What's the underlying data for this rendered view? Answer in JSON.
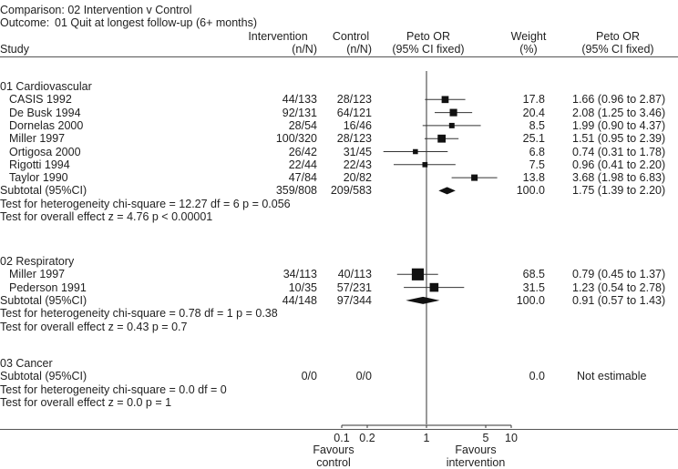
{
  "chart_data": {
    "type": "forest",
    "comparison": "Comparison: 02 Intervention v Control",
    "outcome_label": "Outcome:",
    "outcome": "01 Quit at longest follow-up (6+ months)",
    "headers": {
      "study": "Study",
      "intervention": "Intervention",
      "intervention_sub": "(n/N)",
      "control": "Control",
      "control_sub": "(n/N)",
      "plot": "Peto OR",
      "plot_sub": "(95% CI fixed)",
      "weight": "Weight",
      "weight_sub": "(%)",
      "or": "Peto OR",
      "or_sub": "(95% CI fixed)"
    },
    "x_scale": "log",
    "xlim": [
      0.1,
      10
    ],
    "x_ticks": [
      {
        "value": 0.1,
        "label": "0.1"
      },
      {
        "value": 0.2,
        "label": "0.2"
      },
      {
        "value": 1,
        "label": "1"
      },
      {
        "value": 5,
        "label": "5"
      },
      {
        "value": 10,
        "label": "10"
      }
    ],
    "favours_left": [
      "Favours",
      "control"
    ],
    "favours_right": [
      "Favours",
      "intervention"
    ],
    "groups": [
      {
        "title": "01 Cardiovascular",
        "studies": [
          {
            "name": "CASIS 1992",
            "intervention": "44/133",
            "control": "28/123",
            "weight": 17.8,
            "weight_text": "17.8",
            "or": 1.66,
            "lo": 0.96,
            "hi": 2.87,
            "or_text": "1.66 (0.96 to 2.87)"
          },
          {
            "name": "De Busk 1994",
            "intervention": "92/131",
            "control": "64/121",
            "weight": 20.4,
            "weight_text": "20.4",
            "or": 2.08,
            "lo": 1.25,
            "hi": 3.46,
            "or_text": "2.08 (1.25 to 3.46)"
          },
          {
            "name": "Dornelas 2000",
            "intervention": "28/54",
            "control": "16/46",
            "weight": 8.5,
            "weight_text": "8.5",
            "or": 1.99,
            "lo": 0.9,
            "hi": 4.37,
            "or_text": "1.99 (0.90 to 4.37)"
          },
          {
            "name": "Miller 1997",
            "intervention": "100/320",
            "control": "28/123",
            "weight": 25.1,
            "weight_text": "25.1",
            "or": 1.51,
            "lo": 0.95,
            "hi": 2.39,
            "or_text": "1.51 (0.95 to 2.39)"
          },
          {
            "name": "Ortigosa 2000",
            "intervention": "26/42",
            "control": "31/45",
            "weight": 6.8,
            "weight_text": "6.8",
            "or": 0.74,
            "lo": 0.31,
            "hi": 1.78,
            "or_text": "0.74 (0.31 to 1.78)"
          },
          {
            "name": "Rigotti 1994",
            "intervention": "22/44",
            "control": "22/43",
            "weight": 7.5,
            "weight_text": "7.5",
            "or": 0.96,
            "lo": 0.41,
            "hi": 2.2,
            "or_text": "0.96 (0.41 to 2.20)"
          },
          {
            "name": "Taylor 1990",
            "intervention": "47/84",
            "control": "20/82",
            "weight": 13.8,
            "weight_text": "13.8",
            "or": 3.68,
            "lo": 1.98,
            "hi": 6.83,
            "or_text": "3.68 (1.98 to 6.83)"
          }
        ],
        "subtotal": {
          "name": "Subtotal (95%CI)",
          "intervention": "359/808",
          "control": "209/583",
          "weight_text": "100.0",
          "or": 1.75,
          "lo": 1.39,
          "hi": 2.2,
          "or_text": "1.75 (1.39 to 2.20)"
        },
        "heterogeneity": "Test for heterogeneity chi-square = 12.27 df = 6 p = 0.056",
        "overall": "Test for overall effect z = 4.76 p < 0.00001"
      },
      {
        "title": "02 Respiratory",
        "studies": [
          {
            "name": "Miller 1997",
            "intervention": "34/113",
            "control": "40/113",
            "weight": 68.5,
            "weight_text": "68.5",
            "or": 0.79,
            "lo": 0.45,
            "hi": 1.37,
            "or_text": "0.79 (0.45 to 1.37)"
          },
          {
            "name": "Pederson 1991",
            "intervention": "10/35",
            "control": "57/231",
            "weight": 31.5,
            "weight_text": "31.5",
            "or": 1.23,
            "lo": 0.54,
            "hi": 2.78,
            "or_text": "1.23 (0.54 to 2.78)"
          }
        ],
        "subtotal": {
          "name": "Subtotal (95%CI)",
          "intervention": "44/148",
          "control": "97/344",
          "weight_text": "100.0",
          "or": 0.91,
          "lo": 0.57,
          "hi": 1.43,
          "or_text": "0.91 (0.57 to 1.43)"
        },
        "heterogeneity": "Test for heterogeneity chi-square = 0.78 df = 1 p = 0.38",
        "overall": "Test for overall effect z = 0.43 p = 0.7"
      },
      {
        "title": "03 Cancer",
        "studies": [],
        "subtotal": {
          "name": "Subtotal (95%CI)",
          "intervention": "0/0",
          "control": "0/0",
          "weight_text": "0.0",
          "or": null,
          "lo": null,
          "hi": null,
          "or_text": "Not estimable"
        },
        "heterogeneity": "Test for heterogeneity chi-square = 0.0 df = 0",
        "overall": "Test for overall effect z = 0.0 p = 1"
      }
    ]
  }
}
